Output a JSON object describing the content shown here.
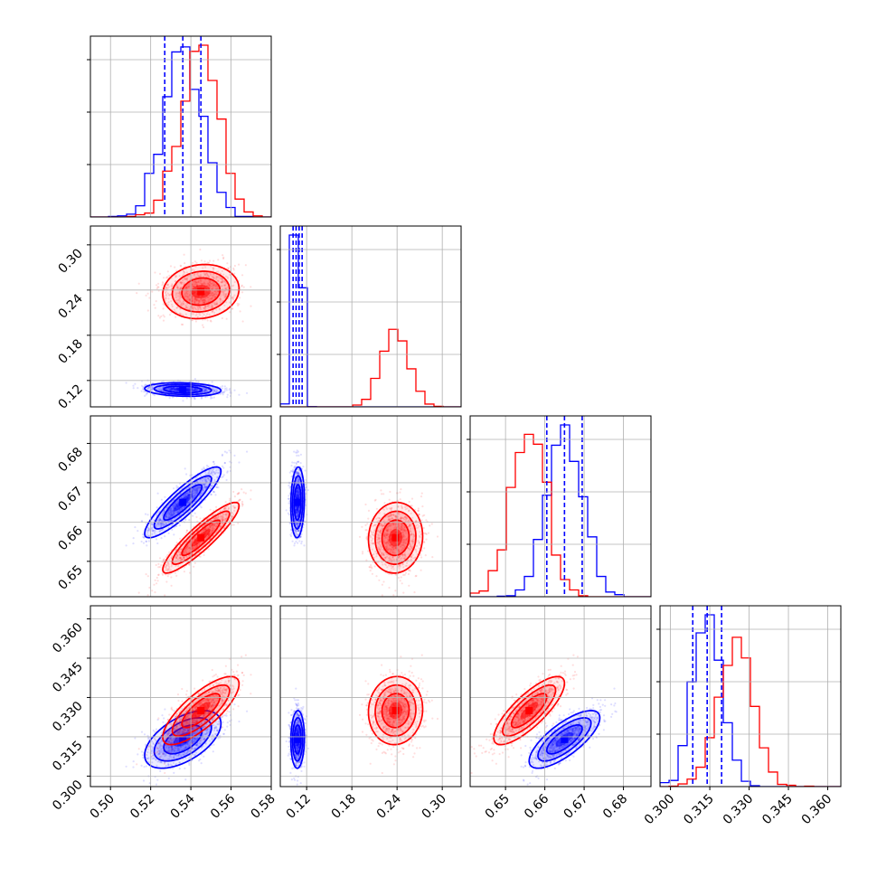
{
  "colors": {
    "series_a": "#0000ff",
    "series_b": "#ff0000",
    "grid": "#b0b0b0",
    "axes": "#000000"
  },
  "chart_data": {
    "type": "corner",
    "params": [
      {
        "range": [
          0.49,
          0.58
        ],
        "ticks": [
          0.5,
          0.52,
          0.54,
          0.56,
          0.58
        ],
        "tick_labels": [
          "0.50",
          "0.52",
          "0.54",
          "0.56",
          "0.58"
        ]
      },
      {
        "range": [
          0.085,
          0.325
        ],
        "ticks": [
          0.12,
          0.18,
          0.24,
          0.3
        ],
        "tick_labels": [
          "0.12",
          "0.18",
          "0.24",
          "0.30"
        ]
      },
      {
        "range": [
          0.641,
          0.687
        ],
        "ticks": [
          0.65,
          0.66,
          0.67,
          0.68
        ],
        "tick_labels": [
          "0.65",
          "0.66",
          "0.67",
          "0.68"
        ]
      },
      {
        "range": [
          0.296,
          0.365
        ],
        "ticks": [
          0.3,
          0.315,
          0.33,
          0.345,
          0.36
        ],
        "tick_labels": [
          "0.300",
          "0.315",
          "0.330",
          "0.345",
          "0.360"
        ]
      }
    ],
    "series": [
      {
        "color": "#0000ff",
        "mean": [
          0.536,
          0.108,
          0.665,
          0.314
        ],
        "sd": [
          0.0095,
          0.0045,
          0.0045,
          0.0055
        ],
        "corr": [
          [
            1,
            -0.15,
            0.88,
            0.55
          ],
          [
            -0.15,
            1,
            0.1,
            0.05
          ],
          [
            0.88,
            0.1,
            1,
            0.75
          ],
          [
            0.55,
            0.05,
            0.75,
            1
          ]
        ],
        "quantile_lines": [
          [
            0.527,
            0.536,
            0.545
          ],
          [
            0.102,
            0.106,
            0.11,
            0.114
          ],
          [
            0.6605,
            0.665,
            0.6695
          ],
          [
            0.3085,
            0.314,
            0.3195
          ]
        ]
      },
      {
        "color": "#ff0000",
        "mean": [
          0.545,
          0.238,
          0.656,
          0.325
        ],
        "sd": [
          0.0095,
          0.018,
          0.0045,
          0.0065
        ],
        "corr": [
          [
            1,
            0.1,
            0.9,
            0.78
          ],
          [
            0.1,
            1,
            0.05,
            0.05
          ],
          [
            0.9,
            0.05,
            1,
            0.8
          ],
          [
            0.78,
            0.05,
            0.8,
            1
          ]
        ]
      }
    ]
  }
}
